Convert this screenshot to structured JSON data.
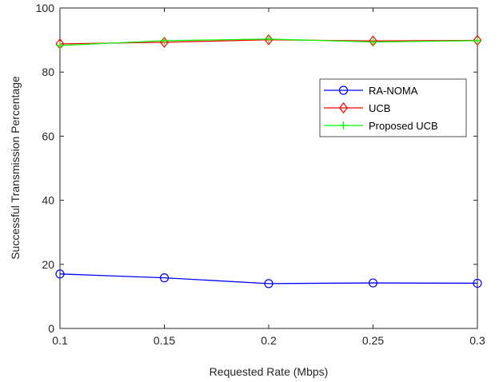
{
  "chart_data": {
    "type": "line",
    "xlabel": "Requested Rate (Mbps)",
    "ylabel": "Successful Transmission Percentage",
    "x": [
      0.1,
      0.15,
      0.2,
      0.25,
      0.3
    ],
    "x_tick_labels": [
      "0.1",
      "0.15",
      "0.2",
      "0.25",
      "0.3"
    ],
    "y_ticks": [
      0,
      20,
      40,
      60,
      80,
      100
    ],
    "y_tick_labels": [
      "0",
      "20",
      "40",
      "60",
      "80",
      "100"
    ],
    "xlim": [
      0.1,
      0.3
    ],
    "ylim": [
      0,
      100
    ],
    "grid": false,
    "legend_position": "upper-right-inside",
    "series": [
      {
        "name": "RA-NOMA",
        "color": "#0000ff",
        "marker": "circle",
        "values": [
          17.0,
          15.8,
          14.0,
          14.2,
          14.1
        ]
      },
      {
        "name": "UCB",
        "color": "#ff0000",
        "marker": "diamond",
        "values": [
          88.8,
          89.3,
          90.1,
          89.7,
          89.9
        ]
      },
      {
        "name": "Proposed UCB",
        "color": "#00ff00",
        "marker": "plus",
        "values": [
          88.3,
          89.8,
          90.3,
          89.4,
          89.8
        ]
      }
    ]
  }
}
